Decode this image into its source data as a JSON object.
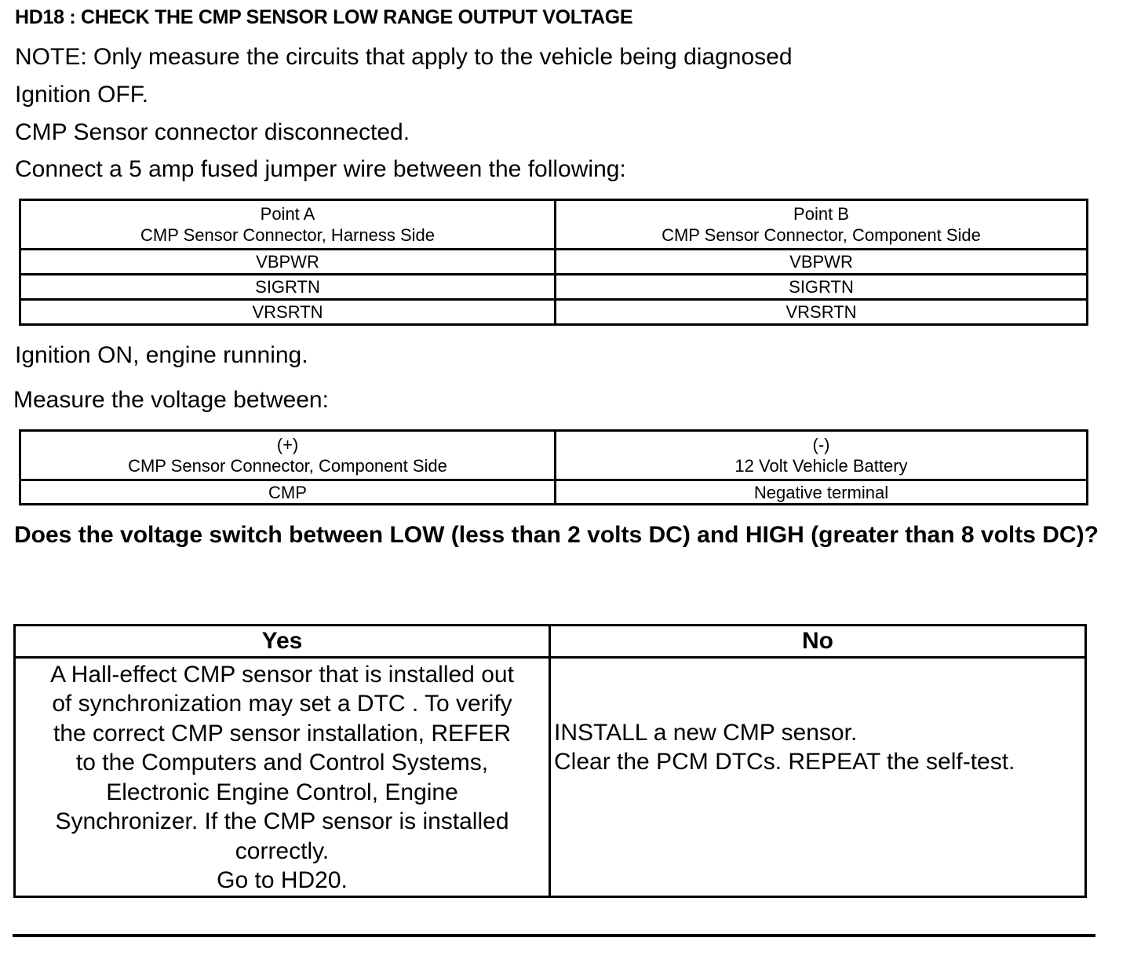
{
  "title": "HD18 : CHECK THE CMP SENSOR LOW RANGE OUTPUT VOLTAGE",
  "instructions": [
    "NOTE: Only measure the circuits that apply to the vehicle being diagnosed",
    "Ignition OFF.",
    "CMP Sensor connector disconnected.",
    "Connect a 5 amp fused jumper wire between the following:"
  ],
  "jumper_table": {
    "col_a": {
      "label": "Point A",
      "sub": "CMP Sensor Connector, Harness Side"
    },
    "col_b": {
      "label": "Point B",
      "sub": "CMP Sensor Connector, Component Side"
    },
    "rows": [
      [
        "VBPWR",
        "VBPWR"
      ],
      [
        "SIGRTN",
        "SIGRTN"
      ],
      [
        "VRSRTN",
        "VRSRTN"
      ]
    ]
  },
  "step2": "Ignition ON, engine running.",
  "step3": "Measure the voltage between:",
  "voltage_table": {
    "col_a": {
      "label": "(+)",
      "sub": "CMP Sensor Connector, Component Side"
    },
    "col_b": {
      "label": "(-)",
      "sub": "12 Volt Vehicle Battery"
    },
    "rows": [
      [
        "CMP",
        "Negative terminal"
      ]
    ]
  },
  "question": "Does the voltage switch between LOW (less than 2 volts DC) and HIGH (greater than 8 volts DC)?",
  "result_table": {
    "yes_label": "Yes",
    "no_label": "No",
    "yes_lines": [
      "A Hall-effect CMP sensor that is installed out",
      "of synchronization may set a DTC . To verify",
      "the correct CMP sensor installation, REFER",
      "to the Computers and Control Systems,",
      "Electronic Engine Control, Engine",
      "Synchronizer. If the CMP sensor is installed",
      "correctly.",
      "Go to HD20."
    ],
    "no_lines": [
      "INSTALL a new CMP sensor.",
      "Clear the PCM DTCs. REPEAT the self-test."
    ]
  }
}
